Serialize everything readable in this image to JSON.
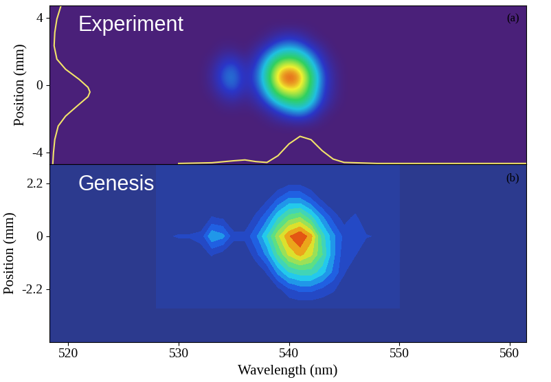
{
  "chart_data": [
    {
      "type": "heatmap",
      "title": "Experiment",
      "annotations": [
        "(a)"
      ],
      "ylabel": "Position (mm)",
      "xlim": [
        518.3,
        561.5
      ],
      "ylim": [
        -4.7,
        4.7
      ],
      "yticks": [
        -4,
        0,
        4
      ],
      "tick_labels": "y",
      "x": [
        528,
        529,
        530,
        531,
        532,
        533,
        534,
        535,
        536,
        537,
        538,
        539,
        540,
        541,
        542,
        543,
        544,
        545,
        546,
        547,
        548,
        549,
        550
      ],
      "y": [
        -2.5,
        -1.75,
        -1.0,
        -0.25,
        0.5,
        1.25,
        2.0,
        2.75,
        3.5
      ],
      "cells": [
        [
          0,
          0,
          0,
          0,
          0,
          0,
          0,
          0,
          0,
          0,
          0,
          0,
          0,
          0,
          0,
          0,
          0,
          0,
          0,
          0,
          0,
          0,
          0
        ],
        [
          0,
          0,
          0,
          0,
          0,
          0,
          0,
          0,
          0,
          0,
          0.05,
          0.15,
          0.25,
          0.3,
          0.2,
          0.05,
          0,
          0,
          0,
          0,
          0,
          0,
          0
        ],
        [
          0,
          0,
          0,
          0,
          0,
          0,
          0.05,
          0.08,
          0.03,
          0.1,
          0.25,
          0.45,
          0.55,
          0.6,
          0.45,
          0.2,
          0.05,
          0,
          0,
          0,
          0,
          0,
          0
        ],
        [
          0,
          0,
          0,
          0,
          0,
          0.05,
          0.2,
          0.28,
          0.12,
          0.2,
          0.45,
          0.75,
          0.85,
          0.8,
          0.55,
          0.25,
          0.08,
          0,
          0,
          0,
          0,
          0,
          0
        ],
        [
          0,
          0,
          0,
          0,
          0,
          0.08,
          0.28,
          0.32,
          0.15,
          0.25,
          0.55,
          0.9,
          1.0,
          0.92,
          0.6,
          0.28,
          0.08,
          0,
          0,
          0,
          0,
          0,
          0
        ],
        [
          0,
          0,
          0,
          0,
          0,
          0.05,
          0.2,
          0.25,
          0.1,
          0.2,
          0.45,
          0.7,
          0.78,
          0.7,
          0.45,
          0.2,
          0.05,
          0,
          0,
          0,
          0,
          0,
          0
        ],
        [
          0,
          0,
          0,
          0,
          0,
          0,
          0.05,
          0.05,
          0,
          0.1,
          0.25,
          0.4,
          0.45,
          0.4,
          0.25,
          0.1,
          0,
          0,
          0,
          0,
          0,
          0,
          0
        ],
        [
          0,
          0,
          0,
          0,
          0,
          0,
          0,
          0,
          0,
          0,
          0.05,
          0.15,
          0.2,
          0.15,
          0.05,
          0,
          0,
          0,
          0,
          0,
          0,
          0,
          0
        ],
        [
          0,
          0,
          0,
          0,
          0,
          0,
          0,
          0,
          0,
          0,
          0,
          0,
          0,
          0,
          0,
          0,
          0,
          0,
          0,
          0,
          0,
          0,
          0
        ]
      ],
      "series": [
        {
          "type": "line",
          "color": "#f2e46a",
          "x": [
            519.33,
            518.96,
            518.77,
            518.71,
            518.96,
            519.75,
            520.98,
            521.78,
            521.96,
            521.78,
            520.8,
            519.75,
            519.08,
            518.77,
            518.65,
            518.59
          ],
          "values": [
            4.7,
            3.91,
            3.11,
            2.32,
            1.53,
            0.93,
            0.33,
            -0.14,
            -0.42,
            -0.7,
            -1.25,
            -1.85,
            -2.44,
            -3.24,
            -4.03,
            -4.7
          ]
        },
        {
          "type": "line",
          "color": "#f2e46a",
          "x": [
            530,
            533,
            535,
            536,
            537,
            538,
            539,
            540,
            541,
            542,
            543,
            544,
            545,
            548,
            561.5
          ],
          "values": [
            -4.66,
            -4.62,
            -4.5,
            -4.45,
            -4.55,
            -4.6,
            -4.2,
            -3.5,
            -3.05,
            -3.25,
            -3.9,
            -4.4,
            -4.6,
            -4.66,
            -4.66
          ]
        }
      ]
    },
    {
      "type": "contour",
      "title": "Genesis",
      "annotations": [
        "(b)"
      ],
      "xlabel": "Wavelength (nm)",
      "ylabel": "Position (mm)",
      "xlim": [
        518.3,
        561.5
      ],
      "ylim": [
        -4.4,
        3.0
      ],
      "xticks": [
        520,
        530,
        540,
        550,
        560
      ],
      "yticks": [
        -2.2,
        0,
        2.2
      ],
      "x": [
        528,
        529,
        530,
        531,
        532,
        533,
        534,
        535,
        536,
        537,
        538,
        539,
        540,
        541,
        542,
        543,
        544,
        545,
        546,
        547,
        548,
        549,
        550
      ],
      "y": [
        -3.0,
        -2.25,
        -1.5,
        -0.75,
        0.0,
        0.75,
        1.5,
        2.25,
        3.0
      ],
      "cells": [
        [
          0,
          0,
          0,
          0,
          0,
          0,
          0,
          0,
          0,
          0,
          0,
          0,
          0,
          0,
          0,
          0,
          0,
          0,
          0,
          0,
          0,
          0,
          0
        ],
        [
          0,
          0,
          0,
          0,
          0,
          0,
          0,
          0,
          0,
          0,
          0,
          0.05,
          0.15,
          0.2,
          0.2,
          0.15,
          0.1,
          0.03,
          0,
          0,
          0,
          0,
          0
        ],
        [
          0,
          0,
          0,
          0,
          0,
          0,
          0,
          0,
          0,
          0,
          0.1,
          0.3,
          0.45,
          0.5,
          0.5,
          0.4,
          0.25,
          0.1,
          0,
          0,
          0,
          0,
          0
        ],
        [
          0,
          0,
          0,
          0,
          0.05,
          0.1,
          0.05,
          0,
          0,
          0.15,
          0.3,
          0.55,
          0.75,
          0.85,
          0.75,
          0.55,
          0.3,
          0.12,
          0.1,
          0,
          0,
          0,
          0
        ],
        [
          0,
          0.08,
          0.1,
          0.1,
          0.12,
          0.35,
          0.3,
          0.12,
          0.12,
          0.25,
          0.45,
          0.7,
          0.9,
          1.0,
          0.85,
          0.5,
          0.3,
          0.15,
          0.12,
          0.1,
          0.08,
          0.05,
          0
        ],
        [
          0,
          0,
          0,
          0,
          0,
          0.1,
          0.08,
          0,
          0,
          0.12,
          0.25,
          0.45,
          0.6,
          0.65,
          0.5,
          0.3,
          0.15,
          0.05,
          0.12,
          0,
          0,
          0,
          0
        ],
        [
          0,
          0,
          0,
          0,
          0,
          0,
          0,
          0,
          0,
          0,
          0.08,
          0.2,
          0.3,
          0.3,
          0.2,
          0.08,
          0,
          0,
          0,
          0,
          0,
          0,
          0
        ],
        [
          0,
          0,
          0,
          0,
          0,
          0,
          0,
          0,
          0,
          0,
          0,
          0,
          0.05,
          0.05,
          0,
          0,
          0,
          0,
          0,
          0,
          0,
          0,
          0
        ],
        [
          0,
          0,
          0,
          0,
          0,
          0,
          0,
          0,
          0,
          0,
          0,
          0,
          0,
          0,
          0,
          0,
          0,
          0,
          0,
          0,
          0,
          0,
          0
        ]
      ]
    }
  ]
}
